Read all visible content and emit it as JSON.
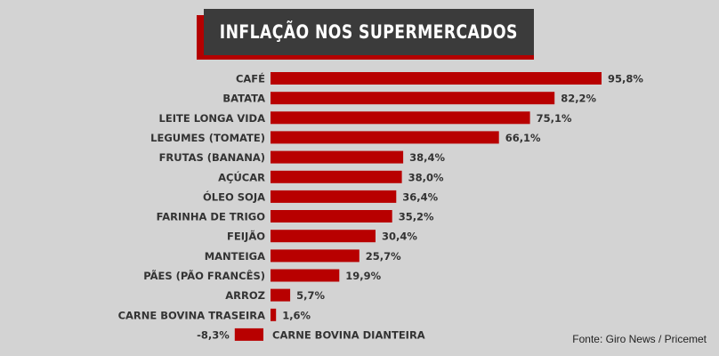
{
  "title": "INFLAÇÃO NOS SUPERMERCADOS",
  "source": "Fonte: Giro News / Pricemet",
  "colors": {
    "bar": "#b80000",
    "title_bg": "#3b3b3b",
    "title_accent": "#b40000",
    "background": "#d3d3d3",
    "text": "#333333"
  },
  "chart_data": {
    "type": "bar",
    "orientation": "horizontal",
    "title": "INFLAÇÃO NOS SUPERMERCADOS",
    "categories": [
      "CAFÉ",
      "BATATA",
      "LEITE LONGA VIDA",
      "LEGUMES (TOMATE)",
      "FRUTAS (BANANA)",
      "AÇÚCAR",
      "ÓLEO SOJA",
      "FARINHA DE TRIGO",
      "FEIJÃO",
      "MANTEIGA",
      "PÃES (PÃO FRANCÊS)",
      "ARROZ",
      "CARNE BOVINA TRASEIRA",
      "CARNE BOVINA DIANTEIRA"
    ],
    "values": [
      95.8,
      82.2,
      75.1,
      66.1,
      38.4,
      38.0,
      36.4,
      35.2,
      30.4,
      25.7,
      19.9,
      5.7,
      1.6,
      -8.3
    ],
    "value_labels": [
      "95,8%",
      "82,2%",
      "75,1%",
      "66,1%",
      "38,4%",
      "38,0%",
      "36,4%",
      "35,2%",
      "30,4%",
      "25,7%",
      "19,9%",
      "5,7%",
      "1,6%",
      "-8,3%"
    ],
    "xlim": [
      -8.3,
      95.8
    ],
    "grid": false,
    "legend": "none"
  }
}
